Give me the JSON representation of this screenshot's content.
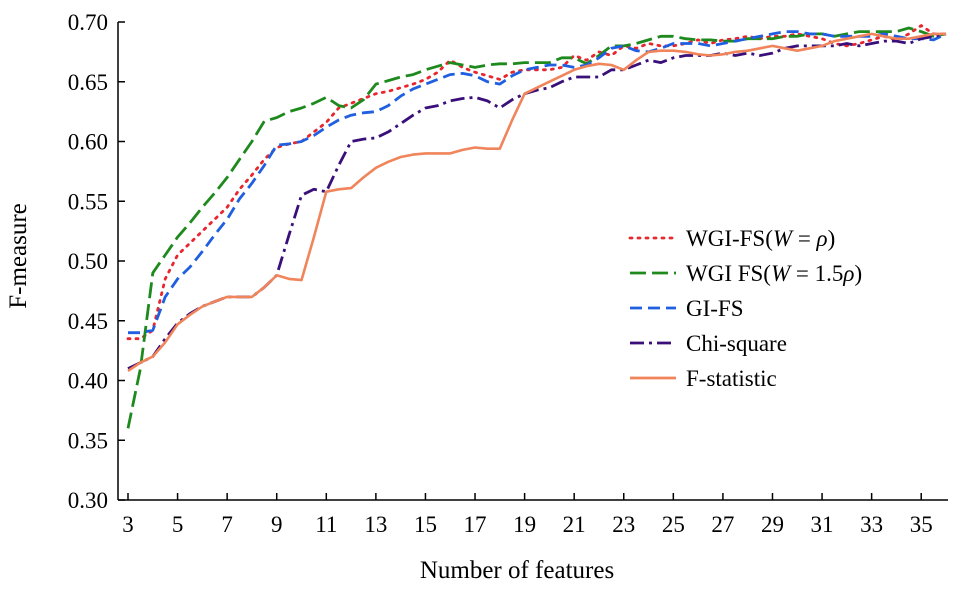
{
  "chart_data": {
    "type": "line",
    "xlabel": "Number of features",
    "ylabel": "F-measure",
    "xlim": [
      3,
      36
    ],
    "ylim": [
      0.3,
      0.7
    ],
    "xticks": [
      3,
      5,
      7,
      9,
      11,
      13,
      15,
      17,
      19,
      21,
      23,
      25,
      27,
      29,
      31,
      33,
      35
    ],
    "xtick_labels": [
      "3",
      "5",
      "7",
      "9",
      "11",
      "13",
      "15",
      "17",
      "19",
      "21",
      "23",
      "25",
      "27",
      "29",
      "31",
      "33",
      "35"
    ],
    "yticks": [
      0.3,
      0.35,
      0.4,
      0.45,
      0.5,
      0.55,
      0.6,
      0.65,
      0.7
    ],
    "ytick_labels": [
      "0.30",
      "0.35",
      "0.40",
      "0.45",
      "0.50",
      "0.55",
      "0.60",
      "0.65",
      "0.70"
    ],
    "grid": false,
    "legend_position": "center-right",
    "x": [
      3,
      3.5,
      4,
      4.5,
      5,
      5.5,
      6,
      6.5,
      7,
      7.5,
      8,
      8.5,
      9,
      9.5,
      10,
      10.5,
      11,
      11.5,
      12,
      12.5,
      13,
      13.5,
      14,
      14.5,
      15,
      15.5,
      16,
      16.5,
      17,
      17.5,
      18,
      18.5,
      19,
      19.5,
      20,
      20.5,
      21,
      21.5,
      22,
      22.5,
      23,
      23.5,
      24,
      24.5,
      25,
      25.5,
      26,
      26.5,
      27,
      27.5,
      28,
      28.5,
      29,
      29.5,
      30,
      30.5,
      31,
      31.5,
      32,
      32.5,
      33,
      33.5,
      34,
      34.5,
      35,
      35.5,
      36
    ],
    "series": [
      {
        "name": "WGI-FS(W = ρ)",
        "label_main": "WGI-FS(",
        "label_var": "W",
        "label_eq": " = ",
        "label_param": "ρ",
        "label_end": ")",
        "color": "#e8262e",
        "dash": "2,6",
        "values": [
          0.435,
          0.435,
          0.442,
          0.485,
          0.505,
          0.515,
          0.525,
          0.535,
          0.545,
          0.56,
          0.572,
          0.585,
          0.595,
          0.598,
          0.6,
          0.608,
          0.616,
          0.628,
          0.632,
          0.636,
          0.64,
          0.642,
          0.645,
          0.648,
          0.652,
          0.658,
          0.668,
          0.662,
          0.658,
          0.655,
          0.652,
          0.658,
          0.66,
          0.66,
          0.66,
          0.662,
          0.672,
          0.668,
          0.675,
          0.672,
          0.68,
          0.678,
          0.682,
          0.68,
          0.68,
          0.682,
          0.685,
          0.682,
          0.685,
          0.686,
          0.688,
          0.686,
          0.688,
          0.688,
          0.69,
          0.688,
          0.686,
          0.682,
          0.68,
          0.682,
          0.685,
          0.688,
          0.685,
          0.69,
          0.697,
          0.69,
          0.69
        ]
      },
      {
        "name": "WGI FS(W = 1.5ρ)",
        "label_main": "WGI FS(",
        "label_var": "W",
        "label_eq": " = 1.5",
        "label_param": "ρ",
        "label_end": ")",
        "color": "#1e8a1e",
        "dash": "16,6",
        "values": [
          0.36,
          0.41,
          0.49,
          0.505,
          0.52,
          0.532,
          0.545,
          0.557,
          0.57,
          0.585,
          0.6,
          0.617,
          0.62,
          0.625,
          0.628,
          0.632,
          0.637,
          0.63,
          0.628,
          0.635,
          0.648,
          0.651,
          0.654,
          0.656,
          0.66,
          0.663,
          0.666,
          0.664,
          0.662,
          0.664,
          0.665,
          0.665,
          0.666,
          0.666,
          0.666,
          0.67,
          0.67,
          0.665,
          0.672,
          0.68,
          0.68,
          0.682,
          0.685,
          0.688,
          0.688,
          0.686,
          0.685,
          0.685,
          0.684,
          0.684,
          0.686,
          0.686,
          0.686,
          0.688,
          0.688,
          0.69,
          0.69,
          0.688,
          0.69,
          0.692,
          0.692,
          0.692,
          0.692,
          0.695,
          0.692,
          0.688,
          0.69
        ]
      },
      {
        "name": "GI-FS",
        "label_main": "GI-FS",
        "label_var": "",
        "label_eq": "",
        "label_param": "",
        "label_end": "",
        "color": "#1f5fe0",
        "dash": "12,6",
        "values": [
          0.44,
          0.44,
          0.442,
          0.47,
          0.485,
          0.495,
          0.508,
          0.522,
          0.535,
          0.552,
          0.565,
          0.58,
          0.597,
          0.598,
          0.6,
          0.605,
          0.612,
          0.618,
          0.622,
          0.624,
          0.625,
          0.63,
          0.638,
          0.644,
          0.648,
          0.652,
          0.656,
          0.657,
          0.655,
          0.65,
          0.648,
          0.655,
          0.66,
          0.662,
          0.664,
          0.664,
          0.662,
          0.664,
          0.67,
          0.678,
          0.68,
          0.676,
          0.675,
          0.678,
          0.682,
          0.682,
          0.682,
          0.68,
          0.682,
          0.684,
          0.686,
          0.688,
          0.69,
          0.692,
          0.692,
          0.69,
          0.69,
          0.688,
          0.688,
          0.688,
          0.688,
          0.69,
          0.688,
          0.686,
          0.686,
          0.685,
          0.69
        ]
      },
      {
        "name": "Chi-square",
        "label_main": "Chi-square",
        "label_var": "",
        "label_eq": "",
        "label_param": "",
        "label_end": "",
        "color": "#3a0f7a",
        "dash": "14,5,3,5",
        "values": [
          0.41,
          0.415,
          0.42,
          0.435,
          0.448,
          0.456,
          0.462,
          0.466,
          0.47,
          0.47,
          0.47,
          0.478,
          0.488,
          0.522,
          0.555,
          0.56,
          0.558,
          0.58,
          0.6,
          0.602,
          0.603,
          0.608,
          0.615,
          0.622,
          0.628,
          0.63,
          0.634,
          0.636,
          0.637,
          0.634,
          0.628,
          0.635,
          0.64,
          0.643,
          0.645,
          0.65,
          0.654,
          0.654,
          0.654,
          0.66,
          0.66,
          0.664,
          0.668,
          0.666,
          0.67,
          0.672,
          0.672,
          0.672,
          0.674,
          0.672,
          0.674,
          0.672,
          0.674,
          0.678,
          0.68,
          0.68,
          0.68,
          0.68,
          0.682,
          0.68,
          0.682,
          0.684,
          0.684,
          0.682,
          0.686,
          0.688,
          0.69
        ]
      },
      {
        "name": "F-statistic",
        "label_main": "F-statistic",
        "label_var": "",
        "label_eq": "",
        "label_param": "",
        "label_end": "",
        "color": "#f0845a",
        "dash": "",
        "values": [
          0.408,
          0.415,
          0.42,
          0.432,
          0.447,
          0.455,
          0.462,
          0.466,
          0.47,
          0.47,
          0.47,
          0.478,
          0.488,
          0.485,
          0.484,
          0.52,
          0.558,
          0.56,
          0.561,
          0.57,
          0.578,
          0.583,
          0.587,
          0.589,
          0.59,
          0.59,
          0.59,
          0.593,
          0.595,
          0.594,
          0.594,
          0.618,
          0.64,
          0.645,
          0.65,
          0.655,
          0.66,
          0.663,
          0.665,
          0.664,
          0.66,
          0.668,
          0.675,
          0.676,
          0.676,
          0.675,
          0.673,
          0.672,
          0.673,
          0.675,
          0.676,
          0.678,
          0.68,
          0.678,
          0.676,
          0.678,
          0.68,
          0.684,
          0.686,
          0.688,
          0.69,
          0.688,
          0.686,
          0.686,
          0.688,
          0.69,
          0.69
        ]
      }
    ]
  }
}
